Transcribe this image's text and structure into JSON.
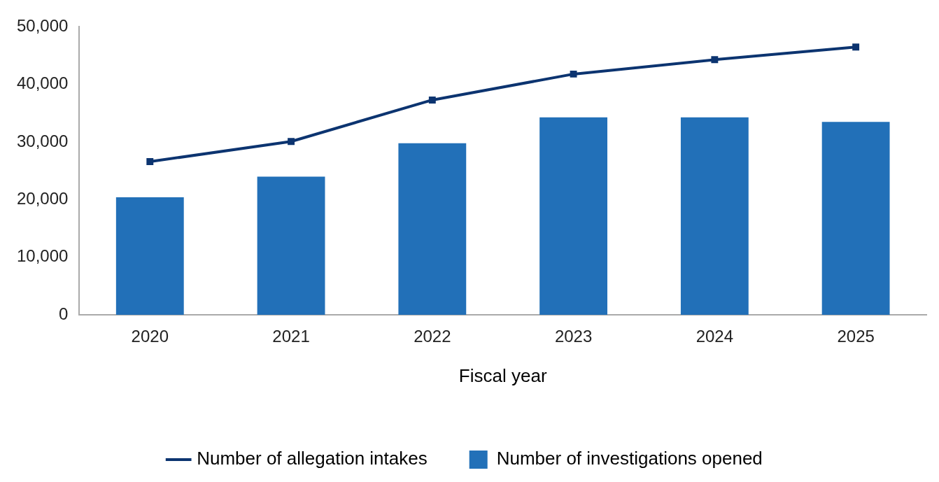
{
  "chart_data": {
    "type": "bar",
    "xlabel": "Fiscal year",
    "categories": [
      "2020",
      "2021",
      "2022",
      "2023",
      "2024",
      "2025"
    ],
    "series": [
      {
        "name": "Number of allegation intakes",
        "type": "line",
        "color": "#0c3470",
        "marker": "square",
        "line_style": "solid",
        "values": [
          26600,
          30100,
          37300,
          41800,
          44300,
          46500
        ]
      },
      {
        "name": "Number of investigations opened",
        "color": "#2270b8",
        "values": [
          20400,
          24000,
          29800,
          34300,
          34300,
          33500
        ]
      }
    ],
    "ylim": [
      0,
      50000
    ],
    "yticks": [
      {
        "value": 0,
        "label": "0"
      },
      {
        "value": 10000,
        "label": "10,000"
      },
      {
        "value": 20000,
        "label": "20,000"
      },
      {
        "value": 30000,
        "label": "30,000"
      },
      {
        "value": 40000,
        "label": "40,000"
      },
      {
        "value": 50000,
        "label": "50,000"
      }
    ],
    "grid": false,
    "legend": "bottom"
  }
}
